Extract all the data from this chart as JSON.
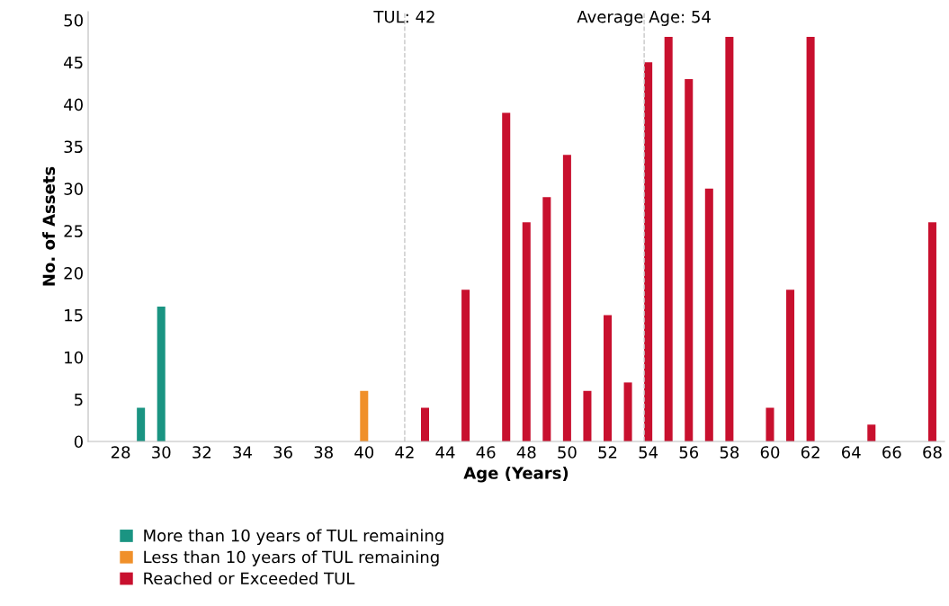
{
  "chart_data": {
    "type": "bar",
    "xlabel": "Age (Years)",
    "ylabel": "No. of Assets",
    "xlim": [
      26.4,
      68.6
    ],
    "xticks": [
      28,
      30,
      32,
      34,
      36,
      38,
      40,
      42,
      44,
      46,
      48,
      50,
      52,
      54,
      56,
      58,
      60,
      62,
      64,
      66,
      68
    ],
    "ylim": [
      0,
      51
    ],
    "yticks": [
      0,
      5,
      10,
      15,
      20,
      25,
      30,
      35,
      40,
      45,
      50
    ],
    "grid": false,
    "legend": "bottom left",
    "series": [
      {
        "name": "More than 10 years of TUL remaining",
        "color": "#1a9482",
        "x": [
          29,
          30
        ],
        "values": [
          4,
          16
        ]
      },
      {
        "name": "Less than 10 years of TUL remaining",
        "color": "#f0902a",
        "x": [
          40
        ],
        "values": [
          6
        ]
      },
      {
        "name": "Reached or Exceeded TUL",
        "color": "#c8102e",
        "x": [
          43,
          45,
          47,
          48,
          49,
          50,
          51,
          52,
          53,
          54,
          55,
          56,
          57,
          58,
          60,
          61,
          62,
          65,
          68
        ],
        "values": [
          4,
          18,
          39,
          26,
          29,
          34,
          6,
          15,
          7,
          45,
          48,
          43,
          30,
          48,
          4,
          18,
          48,
          2,
          26
        ]
      }
    ],
    "ref_lines": [
      {
        "axis": "x",
        "value": 42,
        "label": "TUL: 42",
        "color": "#c8c8c8",
        "line_style": "dashed"
      },
      {
        "axis": "x",
        "value": 53.8,
        "label": "Average Age: 54",
        "color": "#c8c8c8",
        "line_style": "dashed"
      }
    ]
  }
}
